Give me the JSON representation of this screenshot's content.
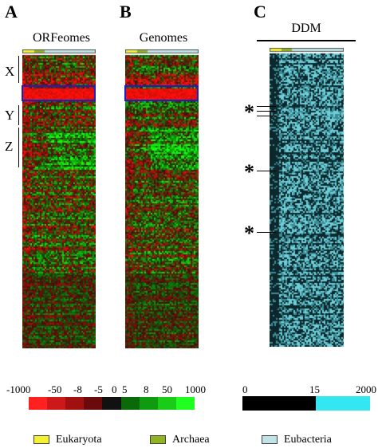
{
  "panels": [
    {
      "letter": "A",
      "title": "ORFeomes",
      "type": "signed"
    },
    {
      "letter": "B",
      "title": "Genomes",
      "type": "signed"
    },
    {
      "letter": "C",
      "title": "DDM",
      "type": "ddm"
    }
  ],
  "groups": {
    "X": "X",
    "Y": "Y",
    "Z": "Z"
  },
  "asterisk": "*",
  "colors": {
    "eukaryota": "#f2f230",
    "archaea": "#8fb321",
    "eubacteria": "#bfe3e6",
    "highlight_box": "#1c1cc8",
    "ddm_cyan": "#33e6f2",
    "ddm_black": "#000000"
  },
  "scale_signed": {
    "labels": [
      "-1000",
      "-50",
      "-8",
      "-5",
      "0",
      "5",
      "8",
      "50",
      "1000"
    ],
    "colors": [
      "#ff2020",
      "#cc1818",
      "#a01010",
      "#6a0a0a",
      "#111111",
      "#0a6a0a",
      "#109a10",
      "#18cc18",
      "#20ff20"
    ]
  },
  "scale_ddm": {
    "labels": [
      "0",
      "15",
      "2000"
    ]
  },
  "legend": [
    {
      "label": "Eukaryota",
      "color_key": "eukaryota"
    },
    {
      "label": "Archaea",
      "color_key": "archaea"
    },
    {
      "label": "Eubacteria",
      "color_key": "eubacteria"
    }
  ]
}
